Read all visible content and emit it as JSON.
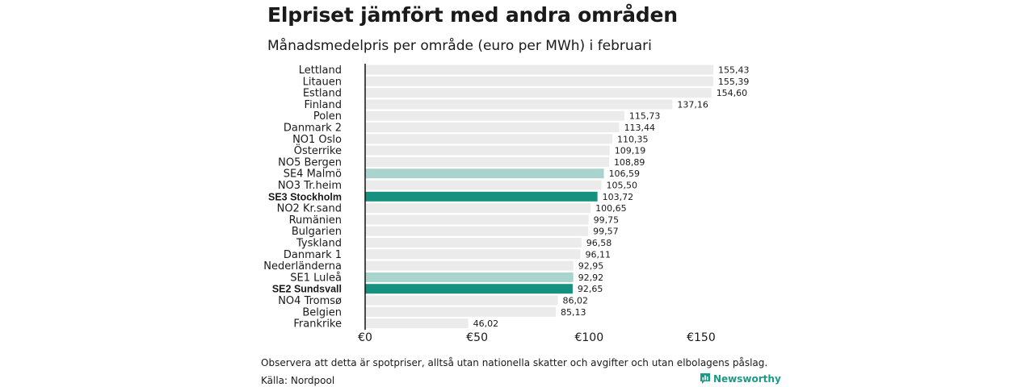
{
  "header": {
    "title": "Elpriset jämfört med andra områden",
    "subtitle": "Månadsmedelpris per område (euro per MWh) i februari"
  },
  "footer": {
    "note": "Observera att detta är spotpriser, alltså utan nationella skatter och avgifter och utan elbolagens påslag.",
    "source": "Källa: Nordpool",
    "brand": "Newsworthy"
  },
  "colors": {
    "bar_default": "#ebebeb",
    "bar_light": "#a8d4cd",
    "bar_dark": "#16917f",
    "brand": "#1a9b86",
    "axis": "#111111"
  },
  "chart_data": {
    "type": "bar",
    "orientation": "horizontal",
    "title": "Elpriset jämfört med andra områden",
    "subtitle": "Månadsmedelpris per område (euro per MWh) i februari",
    "xlabel": "",
    "ylabel": "",
    "xlim": [
      0,
      155.43
    ],
    "x_ticks": [
      0,
      50,
      100,
      150
    ],
    "x_tick_labels": [
      "€0",
      "€50",
      "€100",
      "€150"
    ],
    "grid": true,
    "categories": [
      "Lettland",
      "Litauen",
      "Estland",
      "Finland",
      "Polen",
      "Danmark  2",
      "NO1 Oslo",
      "Österrike",
      "NO5 Bergen",
      "SE4  Malmö",
      "NO3 Tr.heim",
      "SE3 Stockholm",
      "NO2 Kr.sand",
      "Rumänien",
      "Bulgarien",
      "Tyskland",
      "Danmark  1",
      "Nederländerna",
      "SE1  Luleå",
      "SE2 Sundsvall",
      "NO4 Tromsø",
      "Belgien",
      "Frankrike"
    ],
    "values": [
      155.43,
      155.39,
      154.6,
      137.16,
      115.73,
      113.44,
      110.35,
      109.19,
      108.89,
      106.59,
      105.5,
      103.72,
      100.65,
      99.75,
      99.57,
      96.58,
      96.11,
      92.95,
      92.92,
      92.65,
      86.02,
      85.13,
      46.02
    ],
    "value_labels": [
      "155,43",
      "155,39",
      "154,60",
      "137,16",
      "115,73",
      "113,44",
      "110,35",
      "109,19",
      "108,89",
      "106,59",
      "105,50",
      "103,72",
      "100,65",
      "99,75",
      "99,57",
      "96,58",
      "96,11",
      "92,95",
      "92,92",
      "92,65",
      "86,02",
      "85,13",
      "46,02"
    ],
    "highlight": [
      "none",
      "none",
      "none",
      "none",
      "none",
      "none",
      "none",
      "none",
      "none",
      "light",
      "none",
      "dark",
      "none",
      "none",
      "none",
      "none",
      "none",
      "none",
      "light",
      "dark",
      "none",
      "none",
      "none"
    ],
    "bold_labels": [
      false,
      false,
      false,
      false,
      false,
      false,
      false,
      false,
      false,
      false,
      false,
      true,
      false,
      false,
      false,
      false,
      false,
      false,
      false,
      true,
      false,
      false,
      false
    ]
  }
}
